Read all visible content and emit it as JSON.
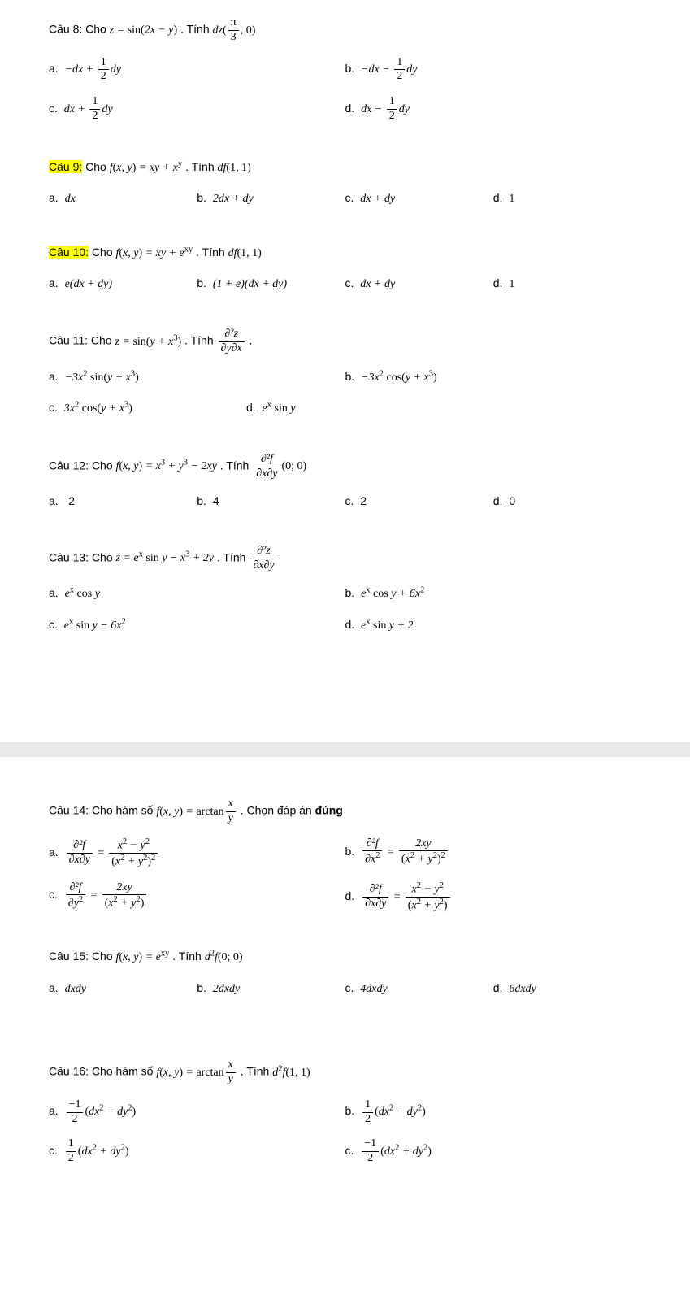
{
  "text_color": "#000000",
  "background_color": "#ffffff",
  "highlight_color": "#ffff00",
  "break_color": "#e8e8e8",
  "font_body": "Arial",
  "font_math": "Times New Roman",
  "q8": {
    "label": "Câu 8:",
    "text_prefix": "Cho ",
    "expr": "z = sin(2x − y)",
    "text_mid": ". Tính ",
    "expr2_prefix": "dz(",
    "expr2_num": "π",
    "expr2_den": "3",
    "expr2_suffix": ", 0)",
    "a_label": "a.",
    "a": "−dx + ½ dy",
    "b_label": "b.",
    "b": "−dx − ½ dy",
    "c_label": "c.",
    "c": "dx + ½ dy",
    "d_label": "d.",
    "d": "dx − ½ dy"
  },
  "q9": {
    "label": "Câu 9:",
    "text_prefix": "Cho ",
    "expr": "f(x, y) = xy + xʸ",
    "text_mid": ". Tính ",
    "expr2": "df(1, 1)",
    "a_label": "a.",
    "a": "dx",
    "b_label": "b.",
    "b": "2dx + dy",
    "c_label": "c.",
    "c": "dx + dy",
    "d_label": "d.",
    "d": "1"
  },
  "q10": {
    "label": "Câu 10:",
    "text_prefix": "Cho ",
    "expr": "f(x, y) = xy + eˣʸ",
    "text_mid": ". Tính ",
    "expr2": "df(1, 1)",
    "a_label": "a.",
    "a": "e(dx + dy)",
    "b_label": "b.",
    "b": "(1 + e)(dx + dy)",
    "c_label": "c.",
    "c": "dx + dy",
    "d_label": "d.",
    "d": "1"
  },
  "q11": {
    "label": "Câu 11:",
    "text_prefix": "Cho ",
    "expr": "z = sin(y + x³)",
    "text_mid": ". Tính ",
    "partial_num": "∂²z",
    "partial_den": "∂y∂x",
    "suffix": ".",
    "a_label": "a.",
    "a": "−3x² sin(y + x³)",
    "b_label": "b.",
    "b": "−3x² cos(y + x³)",
    "c_label": "c.",
    "c": "3x² cos(y + x³)",
    "d_label": "d.",
    "d": "eˣ sin y"
  },
  "q12": {
    "label": "Câu 12:",
    "text_prefix": "Cho ",
    "expr": "f(x, y) = x³ + y³ − 2xy",
    "text_mid": ". Tính ",
    "partial_num": "∂²f",
    "partial_den": "∂x∂y",
    "point": "(0; 0)",
    "a_label": "a.",
    "a": "-2",
    "b_label": "b.",
    "b": "4",
    "c_label": "c.",
    "c": "2",
    "d_label": "d.",
    "d": "0"
  },
  "q13": {
    "label": "Câu 13:",
    "text_prefix": "Cho ",
    "expr": "z = eˣ sin y − x³ + 2y",
    "text_mid": ". Tính ",
    "partial_num": "∂²z",
    "partial_den": "∂x∂y",
    "a_label": "a.",
    "a": "eˣ cos y",
    "b_label": "b.",
    "b": "eˣ cos y + 6x²",
    "c_label": "c.",
    "c": "eˣ sin y − 6x²",
    "d_label": "d.",
    "d": "eˣ sin y + 2"
  },
  "q14": {
    "label": "Câu 14:",
    "text_prefix": "Cho hàm số ",
    "expr_prefix": "f(x, y) = arctan",
    "frac_num": "x",
    "frac_den": "y",
    "text_suffix": ". Chọn đáp án ",
    "text_bold": "đúng",
    "a_label": "a.",
    "a_lhs_num": "∂²f",
    "a_lhs_den": "∂x∂y",
    "a_eq": " = ",
    "a_rhs_num": "x² − y²",
    "a_rhs_den": "(x² + y²)²",
    "b_label": "b.",
    "b_lhs_num": "∂²f",
    "b_lhs_den": "∂x²",
    "b_rhs_num": "2xy",
    "b_rhs_den": "(x² + y²)²",
    "c_label": "c.",
    "c_lhs_num": "∂²f",
    "c_lhs_den": "∂y²",
    "c_rhs_num": "2xy",
    "c_rhs_den": "(x² + y²)",
    "d_label": "d.",
    "d_lhs_num": "∂²f",
    "d_lhs_den": "∂x∂y",
    "d_rhs_num": "x² − y²",
    "d_rhs_den": "(x² + y²)"
  },
  "q15": {
    "label": "Câu 15:",
    "text_prefix": "Cho ",
    "expr": "f(x, y) = eˣʸ",
    "text_mid": ". Tính ",
    "expr2": "d²f(0; 0)",
    "a_label": "a.",
    "a": "dxdy",
    "b_label": "b.",
    "b": "2dxdy",
    "c_label": "c.",
    "c": "4dxdy",
    "d_label": "d.",
    "d": "6dxdy"
  },
  "q16": {
    "label": "Câu 16:",
    "text_prefix": "Cho hàm số ",
    "expr_prefix": "f(x, y) = arctan",
    "frac_num": "x",
    "frac_den": "y",
    "text_mid": ". Tính ",
    "expr2": "d²f(1, 1)",
    "a_label": "a.",
    "a_frac_num": "−1",
    "a_frac_den": "2",
    "a_rest": "(dx² − dy²)",
    "b_label": "b.",
    "b_frac_num": "1",
    "b_frac_den": "2",
    "b_rest": "(dx² − dy²)",
    "c1_label": "c.",
    "c1_frac_num": "1",
    "c1_frac_den": "2",
    "c1_rest": "(dx² + dy²)",
    "c2_label": "c.",
    "c2_frac_num": "−1",
    "c2_frac_den": "2",
    "c2_rest": "(dx² + dy²)"
  }
}
